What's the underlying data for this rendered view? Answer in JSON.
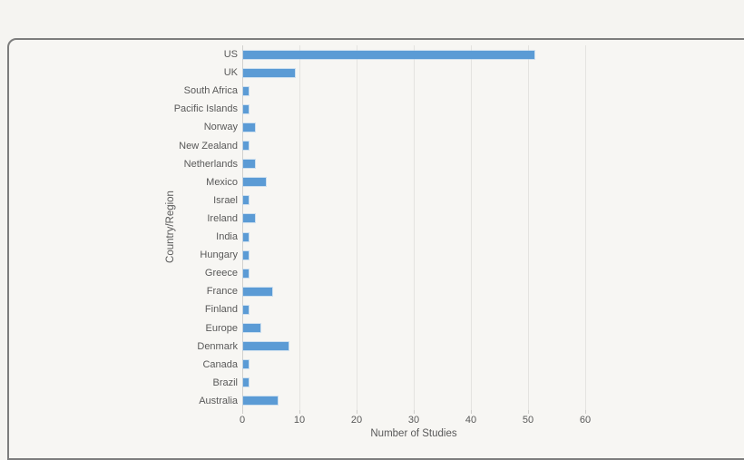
{
  "window": {
    "background_color": "#f5f4f1",
    "panel_background_color": "#f7f6f3",
    "panel_border_color": "#7d7d7d"
  },
  "chart_data": {
    "type": "bar",
    "orientation": "horizontal",
    "title": "",
    "xlabel": "Number of Studies",
    "ylabel": "Country/Region",
    "xlim": [
      0,
      61
    ],
    "xticks": [
      0,
      10,
      20,
      30,
      40,
      50,
      60
    ],
    "grid": true,
    "legend": false,
    "bar_color": "#5b9bd5",
    "text_color": "#595959",
    "gridline_color": "#e4e3e0",
    "categories": [
      "US",
      "UK",
      "South Africa",
      "Pacific Islands",
      "Norway",
      "New Zealand",
      "Netherlands",
      "Mexico",
      "Israel",
      "Ireland",
      "India",
      "Hungary",
      "Greece",
      "France",
      "Finland",
      "Europe",
      "Denmark",
      "Canada",
      "Brazil",
      "Australia"
    ],
    "values": [
      51,
      9,
      1,
      1,
      2,
      1,
      2,
      4,
      1,
      2,
      1,
      1,
      1,
      5,
      1,
      3,
      8,
      1,
      1,
      6
    ]
  }
}
